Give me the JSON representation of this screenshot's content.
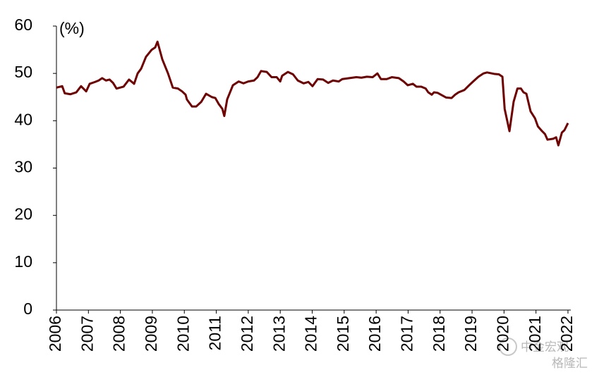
{
  "chart_data": {
    "type": "line",
    "y_unit_label": "(%)",
    "watermark": [
      "中金宏观",
      "格隆汇"
    ],
    "x": [
      2006.0,
      2006.18,
      2006.26,
      2006.44,
      2006.62,
      2006.77,
      2006.93,
      2007.04,
      2007.21,
      2007.32,
      2007.43,
      2007.55,
      2007.66,
      2007.77,
      2007.88,
      2008.1,
      2008.27,
      2008.43,
      2008.54,
      2008.65,
      2008.8,
      2008.98,
      2009.09,
      2009.16,
      2009.31,
      2009.49,
      2009.64,
      2009.8,
      2009.93,
      2010.04,
      2010.08,
      2010.24,
      2010.37,
      2010.53,
      2010.68,
      2010.86,
      2010.97,
      2011.08,
      2011.19,
      2011.25,
      2011.34,
      2011.52,
      2011.7,
      2011.85,
      2012.0,
      2012.18,
      2012.29,
      2012.4,
      2012.58,
      2012.73,
      2012.89,
      2013.0,
      2013.06,
      2013.24,
      2013.4,
      2013.55,
      2013.73,
      2013.88,
      2014.01,
      2014.17,
      2014.34,
      2014.5,
      2014.65,
      2014.83,
      2014.94,
      2015.16,
      2015.38,
      2015.54,
      2015.71,
      2015.89,
      2016.04,
      2016.15,
      2016.33,
      2016.49,
      2016.71,
      2016.86,
      2016.99,
      2017.15,
      2017.26,
      2017.41,
      2017.55,
      2017.63,
      2017.74,
      2017.81,
      2017.92,
      2018.08,
      2018.19,
      2018.36,
      2018.47,
      2018.58,
      2018.76,
      2018.91,
      2019.02,
      2019.2,
      2019.36,
      2019.47,
      2019.69,
      2019.84,
      2019.95,
      2020.02,
      2020.17,
      2020.3,
      2020.42,
      2020.53,
      2020.61,
      2020.7,
      2020.83,
      2020.97,
      2021.06,
      2021.19,
      2021.28,
      2021.36,
      2021.54,
      2021.63,
      2021.7,
      2021.81,
      2021.89,
      2022.0
    ],
    "series": [
      {
        "color": "#6e0000",
        "values": [
          47,
          47.3,
          45.8,
          45.6,
          46,
          47.3,
          46.2,
          47.8,
          48.2,
          48.5,
          49,
          48.5,
          48.7,
          48,
          46.8,
          47.2,
          48.7,
          47.8,
          50,
          51,
          53.5,
          55,
          55.5,
          56.7,
          53,
          50,
          47,
          46.8,
          46.2,
          45.5,
          44.5,
          43,
          43,
          44,
          45.7,
          45,
          44.8,
          43.5,
          42.5,
          41,
          44.5,
          47.5,
          48.3,
          47.9,
          48.3,
          48.5,
          49.2,
          50.5,
          50.3,
          49.2,
          49.2,
          48.3,
          49.5,
          50.3,
          49.8,
          48.5,
          47.9,
          48.2,
          47.3,
          48.8,
          48.7,
          48,
          48.5,
          48.3,
          48.8,
          49,
          49.2,
          49.1,
          49.3,
          49.2,
          50,
          48.8,
          48.8,
          49.2,
          49,
          48.3,
          47.5,
          47.8,
          47.2,
          47.2,
          46.8,
          46,
          45.5,
          46,
          45.9,
          45.3,
          44.9,
          44.8,
          45.5,
          46,
          46.5,
          47.5,
          48.2,
          49.3,
          50,
          50.2,
          49.9,
          49.8,
          49.3,
          42.5,
          37.8,
          44,
          46.8,
          46.8,
          46,
          45.7,
          42,
          40.5,
          38.8,
          37.8,
          37.2,
          36,
          36.2,
          36.5,
          34.8,
          37.5,
          38,
          39.5
        ]
      }
    ],
    "xlim": [
      2006,
      2022
    ],
    "xticks": [
      2006,
      2007,
      2008,
      2009,
      2010,
      2011,
      2012,
      2013,
      2014,
      2015,
      2016,
      2017,
      2018,
      2019,
      2020,
      2021,
      2022
    ],
    "ylim": [
      0,
      60
    ],
    "yticks": [
      0,
      10,
      20,
      30,
      40,
      50,
      60
    ],
    "grid": false
  }
}
